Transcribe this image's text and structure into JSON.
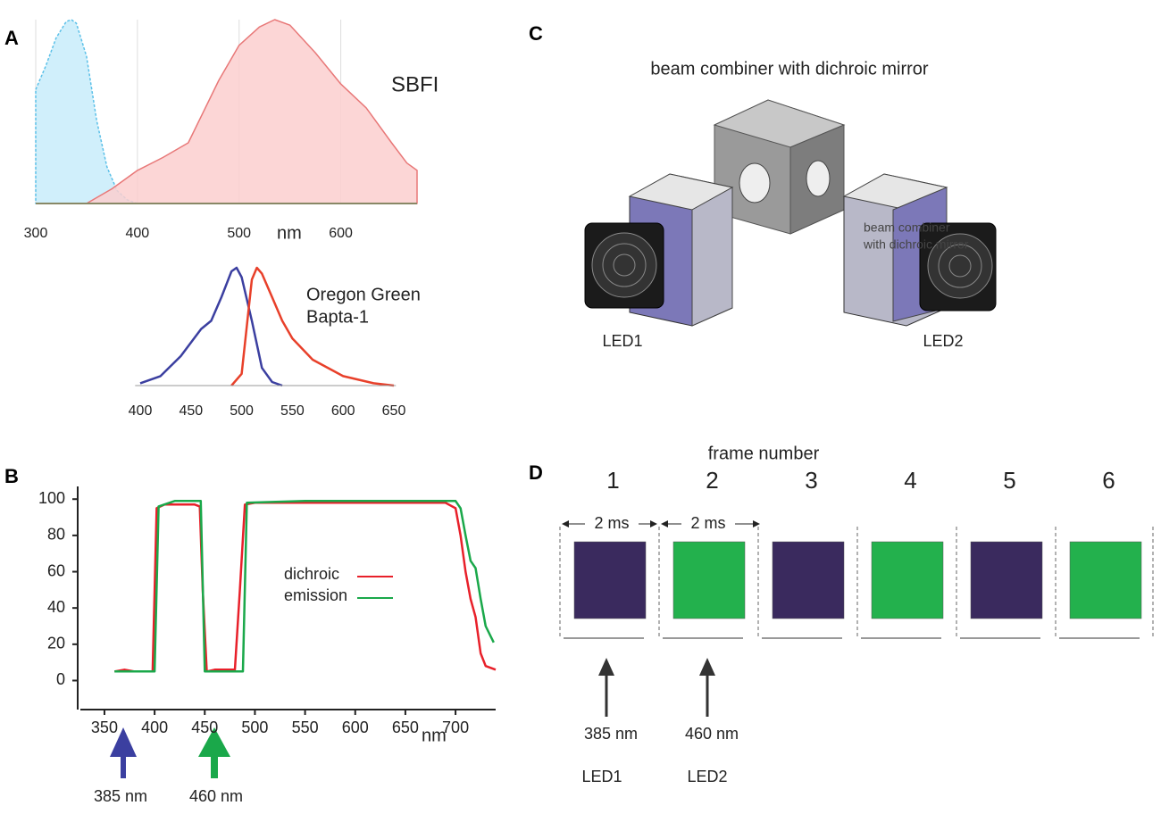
{
  "panel_labels": [
    "A",
    "B",
    "C",
    "D"
  ],
  "chart_data": [
    {
      "type": "area",
      "xlabel": "nm",
      "annotation": "SBFI",
      "xlim": [
        300,
        675
      ],
      "ylim": [
        0,
        100
      ],
      "xticks": [
        300,
        400,
        500,
        600
      ],
      "grid": true,
      "series": [
        {
          "color": "#5bc0e8",
          "fill": "#c8ecfa",
          "dashed": true,
          "x": [
            300,
            310,
            320,
            330,
            335,
            340,
            350,
            360,
            370,
            380,
            390,
            400
          ],
          "values": [
            62,
            75,
            90,
            99,
            100,
            98,
            80,
            45,
            20,
            7,
            2,
            0
          ]
        },
        {
          "color": "#e87878",
          "fill": "#fbcfcf",
          "dashed": false,
          "x": [
            350,
            375,
            400,
            425,
            450,
            480,
            500,
            520,
            535,
            550,
            575,
            600,
            625,
            650,
            665,
            675
          ],
          "values": [
            0,
            8,
            18,
            25,
            33,
            67,
            86,
            96,
            100,
            97,
            82,
            65,
            52,
            33,
            22,
            18
          ]
        }
      ]
    },
    {
      "type": "line",
      "annotation": [
        "Oregon Green",
        "Bapta-1"
      ],
      "xlim": [
        395,
        652
      ],
      "ylim": [
        0,
        100
      ],
      "xticks": [
        400,
        450,
        500,
        550,
        600,
        650
      ],
      "series": [
        {
          "color": "#3b3fa0",
          "x": [
            400,
            420,
            440,
            460,
            470,
            480,
            490,
            495,
            500,
            510,
            520,
            530,
            540
          ],
          "values": [
            2,
            8,
            25,
            48,
            55,
            75,
            97,
            100,
            92,
            55,
            15,
            3,
            0
          ]
        },
        {
          "color": "#e8402a",
          "x": [
            490,
            500,
            505,
            510,
            515,
            520,
            530,
            540,
            550,
            570,
            600,
            630,
            650
          ],
          "values": [
            0,
            10,
            50,
            90,
            100,
            95,
            75,
            55,
            40,
            22,
            8,
            2,
            0
          ]
        }
      ]
    },
    {
      "type": "line",
      "xlabel": "nm",
      "xlim": [
        326,
        740
      ],
      "ylim": [
        -16,
        107
      ],
      "xticks": [
        350,
        400,
        450,
        500,
        550,
        600,
        650,
        700
      ],
      "yticks": [
        0,
        20,
        40,
        60,
        80,
        100
      ],
      "series": [
        {
          "name": "dichroic",
          "color": "#e8202a",
          "x": [
            360,
            370,
            380,
            390,
            398,
            402,
            410,
            420,
            440,
            445,
            448,
            452,
            460,
            470,
            480,
            485,
            490,
            500,
            550,
            600,
            650,
            690,
            700,
            705,
            710,
            715,
            720,
            725,
            730,
            740
          ],
          "values": [
            5,
            6,
            5,
            5,
            5,
            95,
            97,
            97,
            97,
            96,
            50,
            5,
            6,
            6,
            6,
            50,
            97,
            98,
            98,
            98,
            98,
            98,
            95,
            80,
            60,
            45,
            35,
            15,
            8,
            6
          ]
        },
        {
          "name": "emission",
          "color": "#1aa84a",
          "x": [
            360,
            400,
            404,
            420,
            446,
            450,
            488,
            492,
            550,
            650,
            700,
            705,
            710,
            715,
            720,
            725,
            730,
            738
          ],
          "values": [
            5,
            5,
            96,
            99,
            99,
            5,
            5,
            98,
            99,
            99,
            99,
            95,
            80,
            66,
            62,
            45,
            30,
            21
          ]
        }
      ],
      "arrows": [
        {
          "label": "385 nm",
          "color": "#3b3fa0"
        },
        {
          "label": "460 nm",
          "color": "#1aa84a"
        }
      ]
    }
  ],
  "setup": {
    "title": "beam combiner with dichroic mirror",
    "overlay_label": [
      "beam combiner",
      "with dichroic mirror"
    ],
    "leds": [
      "LED1",
      "LED2"
    ]
  },
  "timing": {
    "title": "frame number",
    "frames": [
      1,
      2,
      3,
      4,
      5,
      6
    ],
    "frame_colors": [
      "#3a2a5e",
      "#23b14d",
      "#3a2a5e",
      "#23b14d",
      "#3a2a5e",
      "#23b14d"
    ],
    "intervals": [
      "2 ms",
      "2 ms"
    ],
    "wavelengths": [
      "385 nm",
      "460 nm"
    ],
    "leds": [
      "LED1",
      "LED2"
    ]
  }
}
